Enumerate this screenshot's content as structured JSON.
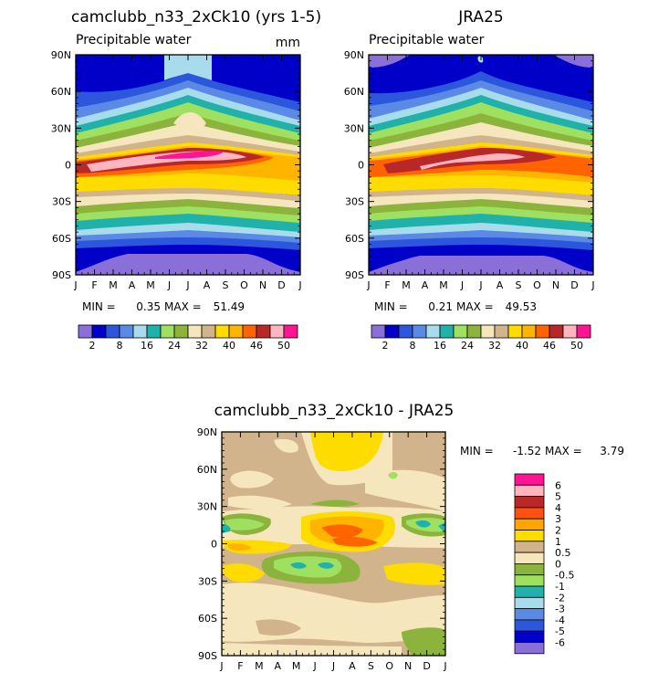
{
  "chart_data": [
    {
      "type": "heatmap",
      "id": "p1",
      "title": "camclubb_n33_2xCk10 (yrs 1-5)",
      "subtitle": "Precipitable water",
      "units": "mm",
      "xlabel": "",
      "ylabel": "",
      "x_ticks": [
        "J",
        "F",
        "M",
        "A",
        "M",
        "J",
        "J",
        "A",
        "S",
        "O",
        "N",
        "D",
        "J"
      ],
      "y_ticks": [
        "90N",
        "60N",
        "30N",
        "0",
        "30S",
        "60S",
        "90S"
      ],
      "ylim": [
        -90,
        90
      ],
      "stats": {
        "min_label": "MIN =",
        "min": "0.35",
        "max_label": "MAX =",
        "max": "51.49"
      },
      "colorbar_labels": [
        "2",
        "8",
        "16",
        "24",
        "32",
        "40",
        "46",
        "50"
      ],
      "colorbar_colors": [
        "#8b6fd8",
        "#0000c8",
        "#2c56dc",
        "#5a8ae6",
        "#a8dced",
        "#20b2aa",
        "#a0e060",
        "#8cb43c",
        "#f5e6be",
        "#d2b48c",
        "#ffdc00",
        "#ffb400",
        "#ff6400",
        "#b92828",
        "#ffb6c1",
        "#ff1493"
      ]
    },
    {
      "type": "heatmap",
      "id": "p2",
      "title": "JRA25",
      "subtitle": "Precipitable water",
      "units": "",
      "xlabel": "",
      "ylabel": "",
      "x_ticks": [
        "J",
        "F",
        "M",
        "A",
        "M",
        "J",
        "J",
        "A",
        "S",
        "O",
        "N",
        "D",
        "J"
      ],
      "y_ticks": [
        "90N",
        "60N",
        "30N",
        "0",
        "30S",
        "60S",
        "90S"
      ],
      "ylim": [
        -90,
        90
      ],
      "stats": {
        "min_label": "MIN =",
        "min": "0.21",
        "max_label": "MAX =",
        "max": "49.53"
      },
      "colorbar_labels": [
        "2",
        "8",
        "16",
        "24",
        "32",
        "40",
        "46",
        "50"
      ],
      "colorbar_colors": [
        "#8b6fd8",
        "#0000c8",
        "#2c56dc",
        "#5a8ae6",
        "#a8dced",
        "#20b2aa",
        "#a0e060",
        "#8cb43c",
        "#f5e6be",
        "#d2b48c",
        "#ffdc00",
        "#ffb400",
        "#ff6400",
        "#b92828",
        "#ffb6c1",
        "#ff1493"
      ]
    },
    {
      "type": "heatmap",
      "id": "p3",
      "title": "camclubb_n33_2xCk10 - JRA25",
      "subtitle": "",
      "units": "",
      "xlabel": "",
      "ylabel": "",
      "x_ticks": [
        "J",
        "F",
        "M",
        "A",
        "M",
        "J",
        "J",
        "A",
        "S",
        "O",
        "N",
        "D",
        "J"
      ],
      "y_ticks": [
        "90N",
        "60N",
        "30N",
        "0",
        "30S",
        "60S",
        "90S"
      ],
      "ylim": [
        -90,
        90
      ],
      "stats": {
        "min_label": "MIN =",
        "min": "-1.52",
        "max_label": "MAX =",
        "max": "3.79"
      },
      "legend_levels": [
        "6",
        "5",
        "4",
        "3",
        "2",
        "1",
        "0.5",
        "0",
        "-0.5",
        "-1",
        "-2",
        "-3",
        "-4",
        "-5",
        "-6"
      ],
      "legend_colors": [
        "#ff1493",
        "#ffb6c1",
        "#b92828",
        "#ff5014",
        "#ffa500",
        "#ffdc00",
        "#d2b48c",
        "#f5e6be",
        "#8cb43c",
        "#a0e060",
        "#20b2aa",
        "#a8dced",
        "#5a8ae6",
        "#2c56dc",
        "#0000c8",
        "#8b6fd8"
      ]
    }
  ]
}
